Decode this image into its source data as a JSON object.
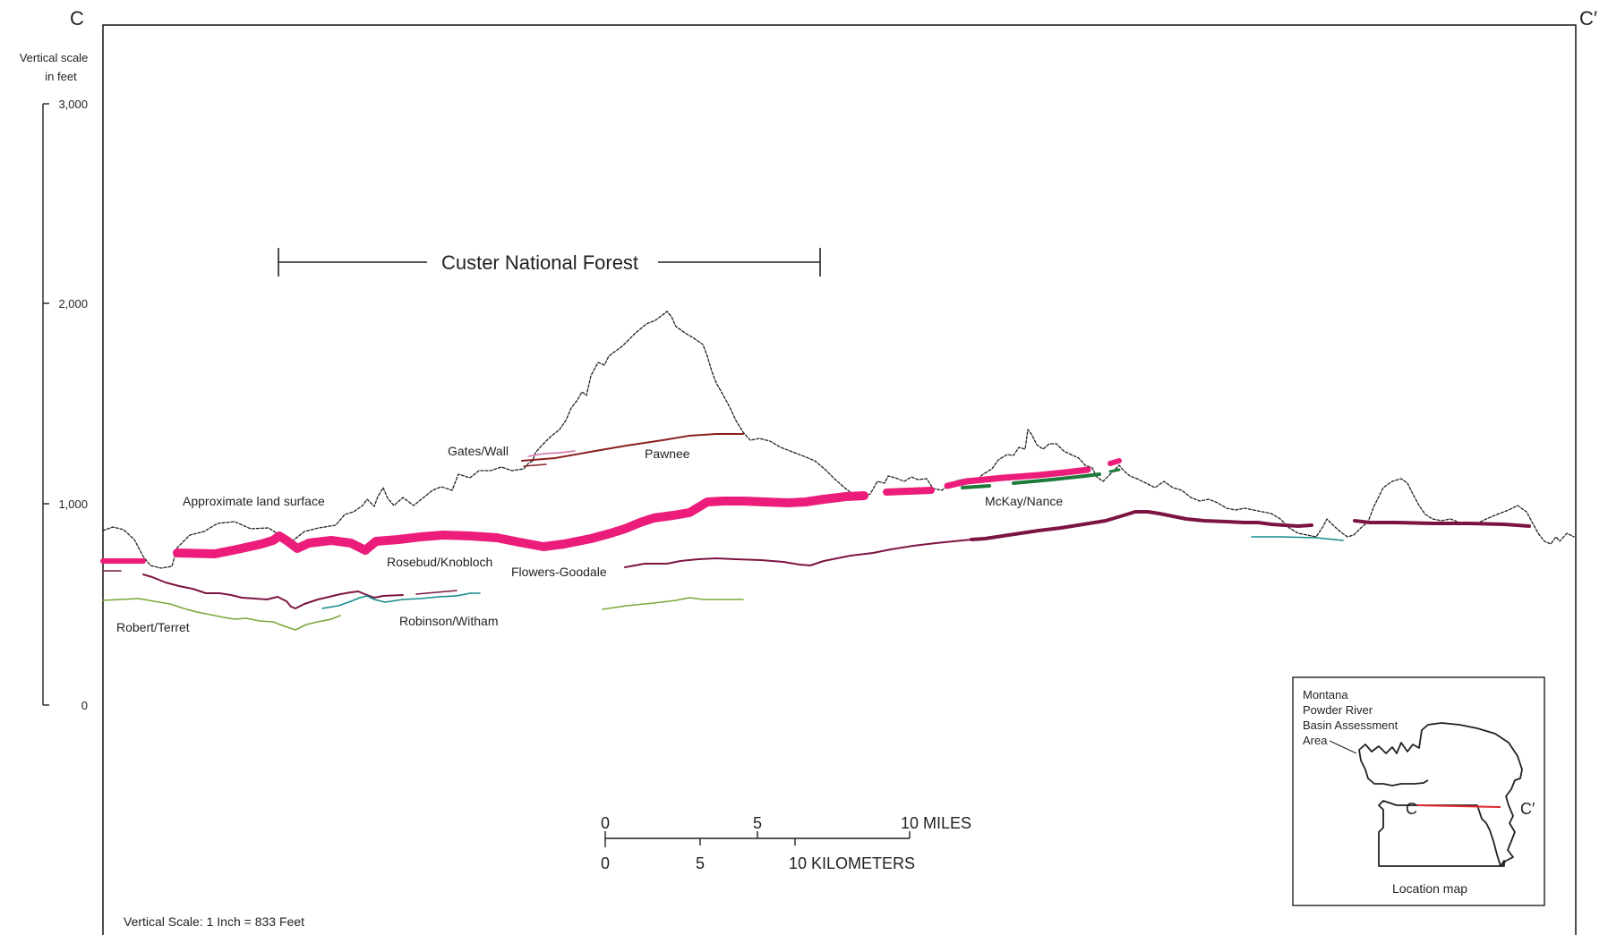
{
  "section": {
    "left_endpoint": "C",
    "right_endpoint": "C′",
    "forest_label": "Custer National Forest",
    "footer_scale": "Vertical Scale: 1 Inch = 833 Feet"
  },
  "vertical_scale": {
    "title_line1": "Vertical scale",
    "title_line2": "in feet",
    "ticks": [
      {
        "label": "3,000",
        "value": 3000
      },
      {
        "label": "2,000",
        "value": 2000
      },
      {
        "label": "1,000",
        "value": 1000
      },
      {
        "label": "0",
        "value": 0
      }
    ]
  },
  "labels": {
    "land_surface": "Approximate land surface",
    "gates_wall": "Gates/Wall",
    "pawnee": "Pawnee",
    "mckay_nance": "McKay/Nance",
    "rosebud_knobloch": "Rosebud/Knobloch",
    "flowers_goodale": "Flowers-Goodale",
    "robert_terret": "Robert/Terret",
    "robinson_witham": "Robinson/Witham"
  },
  "bar_scale": {
    "miles_ticks": [
      "0",
      "5",
      "10 MILES"
    ],
    "km_ticks": [
      "0",
      "5",
      "10 KILOMETERS"
    ]
  },
  "location_map": {
    "area_line1": "Montana",
    "area_line2": "Powder River",
    "area_line3": "Basin Assessment",
    "area_line4": "Area",
    "left_end": "C",
    "right_end": "C′",
    "caption": "Location map"
  },
  "colors": {
    "rosebud": "#ec1c7a",
    "flowers": "#7c1442",
    "robinson": "#138a8a",
    "robert": "#7aa83a",
    "mckay_green": "#1e7a3a",
    "pawnee": "#8a1f1f",
    "gates": "#d46aa8",
    "section_line": "#e3262b"
  }
}
